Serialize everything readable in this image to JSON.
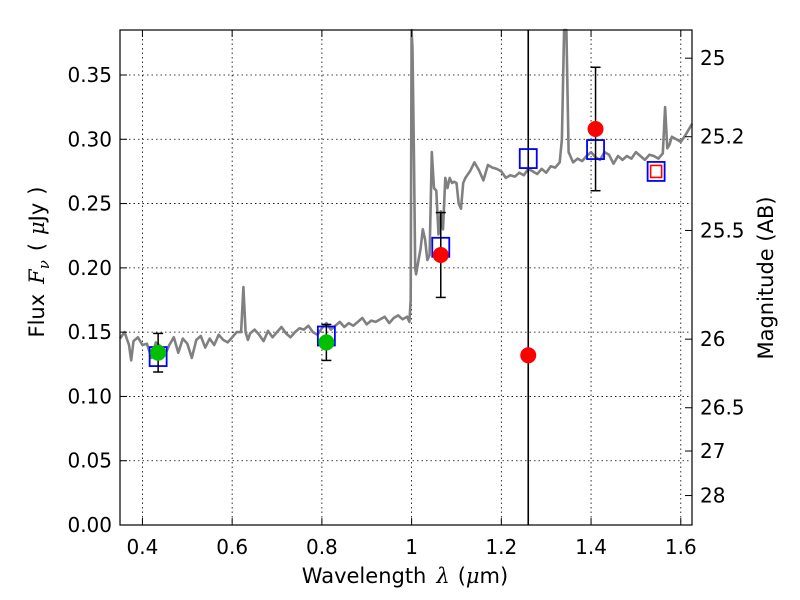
{
  "chart_data": {
    "type": "scatter",
    "xlabel_main": "Wavelength",
    "xlabel_symbol": "λ",
    "xlabel_unit_open": "(",
    "xlabel_unit_mu": "μ",
    "xlabel_unit_rest": "m)",
    "ylabel_main": "Flux",
    "ylabel_symbol": "F",
    "ylabel_subscript": "ν",
    "ylabel_unit_open": "(",
    "ylabel_unit_mu": "μ",
    "ylabel_unit_rest": "Jy",
    "ylabel_unit_close": ")",
    "y2label": "Magnitude (AB)",
    "xlim": [
      0.35,
      1.625
    ],
    "ylim": [
      0.0,
      0.385
    ],
    "grid": true,
    "x_ticks": [
      0.4,
      0.6,
      0.8,
      1.0,
      1.2,
      1.4,
      1.6
    ],
    "x_tick_labels": [
      "0.4",
      "0.6",
      "0.8",
      "1",
      "1.2",
      "1.4",
      "1.6"
    ],
    "y_ticks": [
      0.0,
      0.05,
      0.1,
      0.15,
      0.2,
      0.25,
      0.3,
      0.35
    ],
    "y_tick_labels": [
      "0.00",
      "0.05",
      "0.10",
      "0.15",
      "0.20",
      "0.25",
      "0.30",
      "0.35"
    ],
    "y2_ticks": [
      25,
      25.2,
      25.5,
      26,
      26.5,
      27,
      28
    ],
    "y2_tick_labels": [
      "25",
      "25.2",
      "25.5",
      "26",
      "26.5",
      "27",
      "28"
    ],
    "vertical_line_x": 1.26,
    "spectrum": {
      "color": "#808080",
      "x": [
        0.35,
        0.36,
        0.37,
        0.375,
        0.38,
        0.39,
        0.4,
        0.41,
        0.42,
        0.43,
        0.44,
        0.45,
        0.46,
        0.47,
        0.48,
        0.49,
        0.5,
        0.51,
        0.52,
        0.53,
        0.54,
        0.55,
        0.56,
        0.57,
        0.58,
        0.59,
        0.6,
        0.61,
        0.62,
        0.625,
        0.63,
        0.635,
        0.64,
        0.65,
        0.66,
        0.67,
        0.68,
        0.69,
        0.7,
        0.71,
        0.72,
        0.73,
        0.74,
        0.75,
        0.76,
        0.77,
        0.78,
        0.79,
        0.8,
        0.81,
        0.82,
        0.83,
        0.84,
        0.85,
        0.86,
        0.87,
        0.88,
        0.89,
        0.9,
        0.91,
        0.92,
        0.93,
        0.94,
        0.95,
        0.96,
        0.97,
        0.98,
        0.99,
        0.995,
        0.998,
        1.0,
        1.002,
        1.005,
        1.008,
        1.01,
        1.015,
        1.02,
        1.025,
        1.03,
        1.035,
        1.04,
        1.045,
        1.05,
        1.055,
        1.06,
        1.065,
        1.07,
        1.075,
        1.08,
        1.085,
        1.09,
        1.095,
        1.1,
        1.105,
        1.11,
        1.115,
        1.12,
        1.13,
        1.14,
        1.15,
        1.16,
        1.17,
        1.18,
        1.19,
        1.2,
        1.21,
        1.22,
        1.23,
        1.24,
        1.25,
        1.26,
        1.27,
        1.28,
        1.29,
        1.3,
        1.31,
        1.32,
        1.33,
        1.335,
        1.34,
        1.345,
        1.35,
        1.36,
        1.37,
        1.38,
        1.39,
        1.4,
        1.41,
        1.42,
        1.43,
        1.44,
        1.45,
        1.46,
        1.47,
        1.48,
        1.49,
        1.5,
        1.51,
        1.52,
        1.53,
        1.54,
        1.55,
        1.56,
        1.565,
        1.57,
        1.575,
        1.58,
        1.59,
        1.6,
        1.61,
        1.625
      ],
      "y": [
        0.145,
        0.15,
        0.14,
        0.128,
        0.143,
        0.146,
        0.14,
        0.141,
        0.13,
        0.142,
        0.139,
        0.132,
        0.14,
        0.146,
        0.134,
        0.145,
        0.141,
        0.13,
        0.144,
        0.147,
        0.138,
        0.145,
        0.14,
        0.148,
        0.144,
        0.142,
        0.146,
        0.15,
        0.15,
        0.185,
        0.15,
        0.144,
        0.149,
        0.152,
        0.148,
        0.143,
        0.151,
        0.146,
        0.15,
        0.154,
        0.149,
        0.146,
        0.15,
        0.153,
        0.152,
        0.155,
        0.15,
        0.148,
        0.153,
        0.157,
        0.152,
        0.155,
        0.158,
        0.154,
        0.157,
        0.155,
        0.158,
        0.161,
        0.156,
        0.159,
        0.158,
        0.16,
        0.162,
        0.157,
        0.161,
        0.163,
        0.16,
        0.162,
        0.158,
        0.175,
        0.385,
        0.37,
        0.29,
        0.2,
        0.195,
        0.205,
        0.215,
        0.23,
        0.222,
        0.206,
        0.21,
        0.29,
        0.262,
        0.26,
        0.226,
        0.244,
        0.23,
        0.27,
        0.262,
        0.27,
        0.266,
        0.267,
        0.266,
        0.25,
        0.246,
        0.266,
        0.27,
        0.275,
        0.282,
        0.276,
        0.268,
        0.28,
        0.278,
        0.277,
        0.275,
        0.27,
        0.272,
        0.271,
        0.274,
        0.272,
        0.277,
        0.275,
        0.273,
        0.277,
        0.274,
        0.279,
        0.278,
        0.282,
        0.3,
        0.385,
        0.385,
        0.29,
        0.282,
        0.285,
        0.283,
        0.287,
        0.29,
        0.286,
        0.284,
        0.29,
        0.288,
        0.281,
        0.287,
        0.284,
        0.287,
        0.285,
        0.29,
        0.287,
        0.284,
        0.288,
        0.287,
        0.285,
        0.289,
        0.325,
        0.293,
        0.296,
        0.302,
        0.3,
        0.298,
        0.303,
        0.312
      ]
    },
    "model_points": {
      "marker": "square",
      "stroke": "#0000ff",
      "x": [
        0.435,
        0.81,
        1.065,
        1.26,
        1.41,
        1.545
      ],
      "y": [
        0.131,
        0.147,
        0.216,
        0.285,
        0.292,
        0.275
      ]
    },
    "observed_optical": {
      "marker": "circle",
      "color": "#00c000",
      "x": [
        0.435,
        0.81
      ],
      "y": [
        0.134,
        0.142
      ],
      "yerr": [
        0.015,
        0.014
      ]
    },
    "observed_nir": {
      "marker": "circle",
      "color": "#ff0000",
      "x": [
        1.065,
        1.26,
        1.41
      ],
      "y": [
        0.21,
        0.132,
        0.308
      ],
      "yerr": [
        0.033,
        null,
        0.048
      ]
    },
    "open_red_square": {
      "marker": "square-open",
      "color": "#ff0000",
      "x": [
        1.545
      ],
      "y": [
        0.275
      ]
    }
  }
}
